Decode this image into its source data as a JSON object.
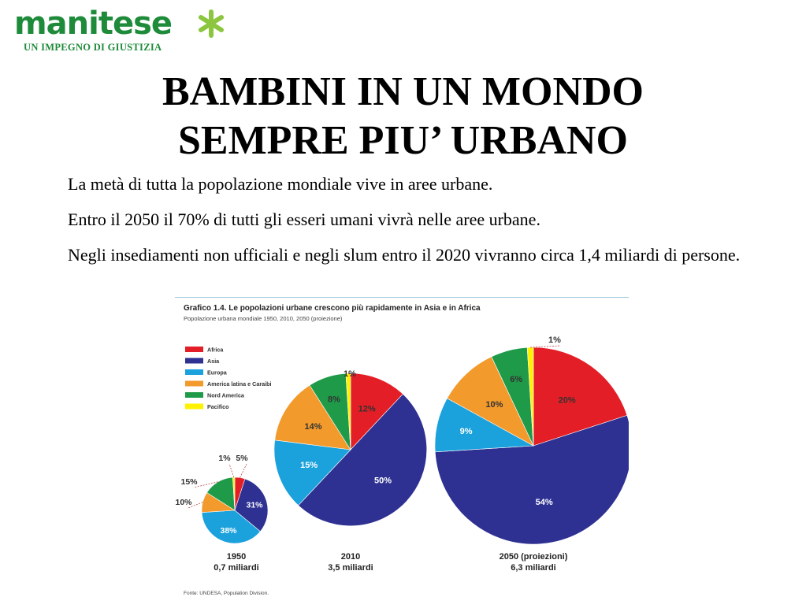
{
  "logo": {
    "word": "manitese",
    "tagline": "UN IMPEGNO DI GIUSTIZIA",
    "brand_color": "#1e8b3a",
    "accent_color": "#8cc63f"
  },
  "title_lines": [
    "BAMBINI IN UN MONDO",
    "SEMPRE PIU’ URBANO"
  ],
  "paragraphs": [
    "La metà di tutta la popolazione mondiale vive in aree urbane.",
    "Entro il 2050 il 70% di tutti gli esseri umani vivrà nelle aree urbane.",
    "Negli insediamenti non ufficiali e negli slum entro il 2020 vivranno circa 1,4 miliardi di persone."
  ],
  "chart_data": {
    "type": "pie",
    "title": "Grafico 1.4. Le popolazioni urbane crescono più rapidamente in Asia e in Africa",
    "subtitle": "Popolazione urbana mondiale 1950, 2010, 2050 (proiezione)",
    "source": "Fonte: UNDESA, Population Division.",
    "legend_position": "top-left",
    "categories": [
      "Africa",
      "Asia",
      "Europa",
      "America latina e Caraibi",
      "Nord America",
      "Pacifico"
    ],
    "colors": [
      "#e31e26",
      "#2e3192",
      "#1ba1dc",
      "#f39a2c",
      "#1f9a48",
      "#fff200"
    ],
    "series": [
      {
        "name": "1950",
        "caption": "0,7 miliardi",
        "values": [
          5,
          31,
          38,
          10,
          15,
          1
        ]
      },
      {
        "name": "2010",
        "caption": "3,5 miliardi",
        "values": [
          12,
          50,
          15,
          14,
          8,
          1
        ]
      },
      {
        "name": "2050 (proiezioni)",
        "caption": "6,3 miliardi",
        "values": [
          20,
          54,
          9,
          10,
          6,
          1
        ]
      }
    ]
  }
}
